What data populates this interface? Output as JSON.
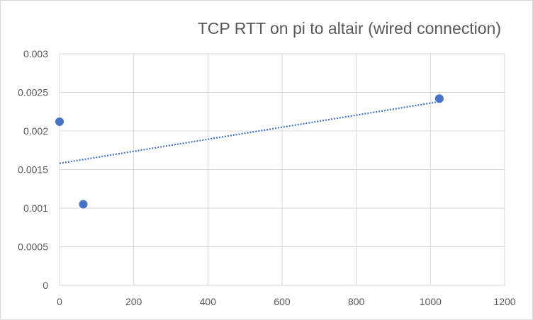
{
  "chart_data": {
    "type": "scatter",
    "title": "TCP RTT on pi to altair (wired connection)",
    "xlabel": "",
    "ylabel": "",
    "xlim": [
      0,
      1200
    ],
    "ylim": [
      0,
      0.003
    ],
    "x_ticks": [
      "0",
      "200",
      "400",
      "600",
      "800",
      "1000",
      "1200"
    ],
    "y_ticks": [
      "0",
      "0.0005",
      "0.001",
      "0.0015",
      "0.002",
      "0.0025",
      "0.003"
    ],
    "grid": true,
    "legend": "none",
    "series": [
      {
        "color": "#4472c4",
        "points": [
          {
            "x": 0,
            "y": 0.00212
          },
          {
            "x": 64,
            "y": 0.00105
          },
          {
            "x": 1024,
            "y": 0.00242
          }
        ]
      }
    ],
    "trendline": {
      "type": "linear",
      "style": "dotted",
      "color": "#4472c4",
      "x_range": [
        0,
        1024
      ],
      "y_start": 0.00158,
      "y_end": 0.00238
    }
  }
}
